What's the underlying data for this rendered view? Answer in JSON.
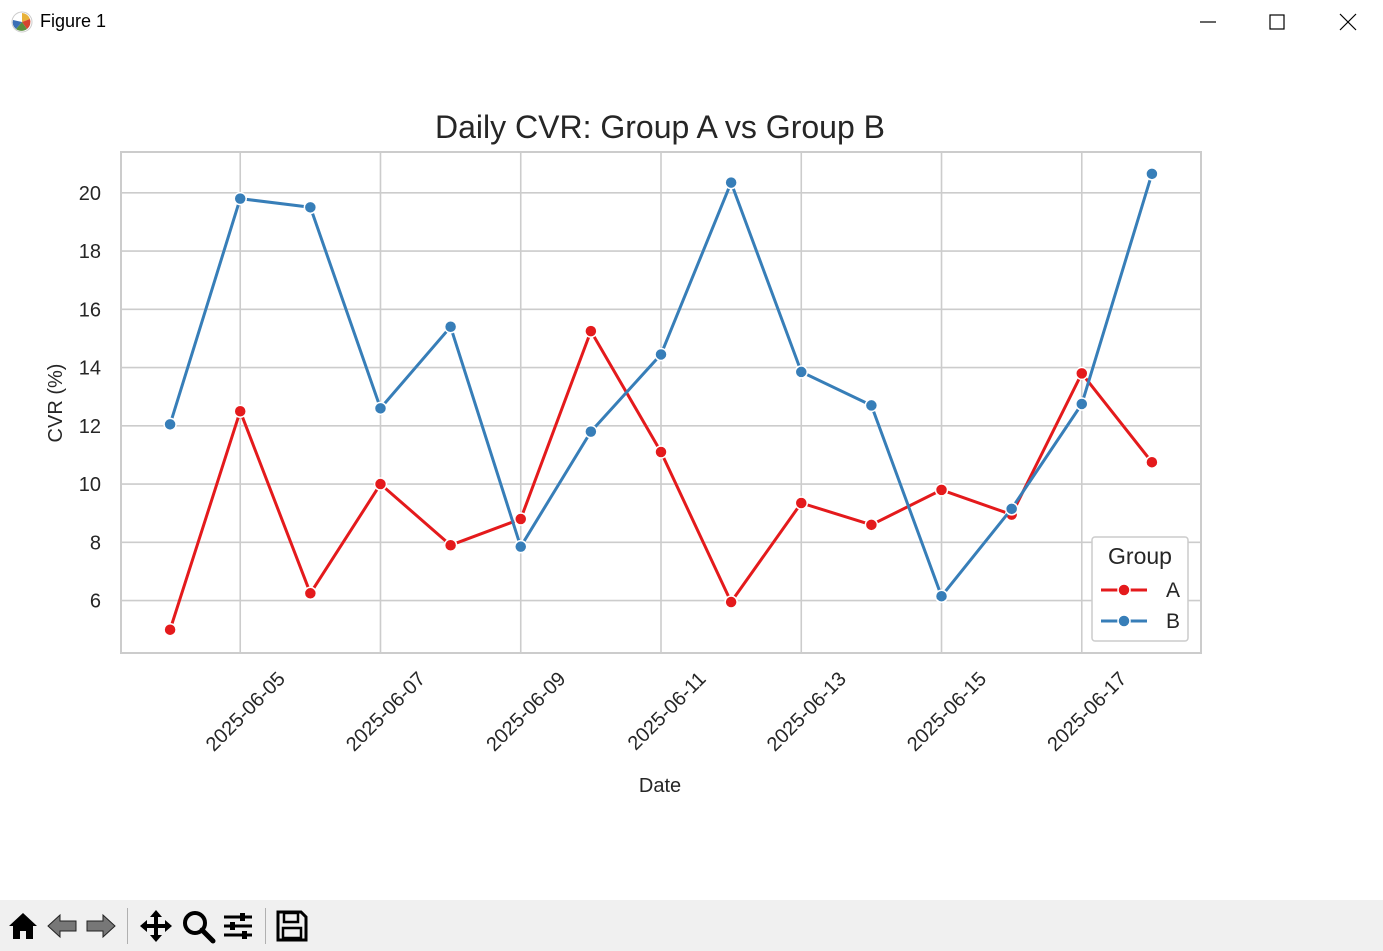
{
  "window": {
    "title": "Figure 1",
    "icons": {
      "app": "matplotlib-icon",
      "minimize": "minimize-icon",
      "maximize": "maximize-icon",
      "close": "close-icon"
    }
  },
  "toolbar": {
    "buttons": [
      {
        "name": "home-icon",
        "enabled": true
      },
      {
        "name": "back-icon",
        "enabled": false
      },
      {
        "name": "forward-icon",
        "enabled": false
      },
      {
        "name": "pan-icon",
        "enabled": true
      },
      {
        "name": "zoom-icon",
        "enabled": true
      },
      {
        "name": "configure-subplots-icon",
        "enabled": true
      },
      {
        "name": "save-icon",
        "enabled": true
      }
    ]
  },
  "chart_data": {
    "type": "line",
    "title": "Daily CVR: Group A vs Group B",
    "xlabel": "Date",
    "ylabel": "CVR (%)",
    "x": [
      "2025-06-04",
      "2025-06-05",
      "2025-06-06",
      "2025-06-07",
      "2025-06-08",
      "2025-06-09",
      "2025-06-10",
      "2025-06-11",
      "2025-06-12",
      "2025-06-13",
      "2025-06-14",
      "2025-06-15",
      "2025-06-16",
      "2025-06-17",
      "2025-06-18"
    ],
    "x_tick_labels": [
      "2025-06-05",
      "2025-06-07",
      "2025-06-09",
      "2025-06-11",
      "2025-06-13",
      "2025-06-15",
      "2025-06-17"
    ],
    "x_tick_rotation_deg": 45,
    "xlim": [
      "2025-06-03T07:12",
      "2025-06-18T16:48"
    ],
    "y_ticks": [
      6,
      8,
      10,
      12,
      14,
      16,
      18,
      20
    ],
    "ylim": [
      4.2,
      21.4
    ],
    "grid": true,
    "legend": {
      "title": "Group",
      "position": "lower right"
    },
    "series": [
      {
        "name": "A",
        "color": "#e41a1c",
        "values": [
          5.0,
          12.5,
          6.25,
          10.0,
          7.9,
          8.8,
          15.25,
          11.1,
          5.95,
          9.35,
          8.6,
          9.8,
          8.95,
          13.8,
          10.75
        ]
      },
      {
        "name": "B",
        "color": "#377eb8",
        "values": [
          12.05,
          19.8,
          19.5,
          12.6,
          15.4,
          7.85,
          11.8,
          14.45,
          20.35,
          13.85,
          12.7,
          6.15,
          9.15,
          12.75,
          20.65
        ]
      }
    ]
  }
}
